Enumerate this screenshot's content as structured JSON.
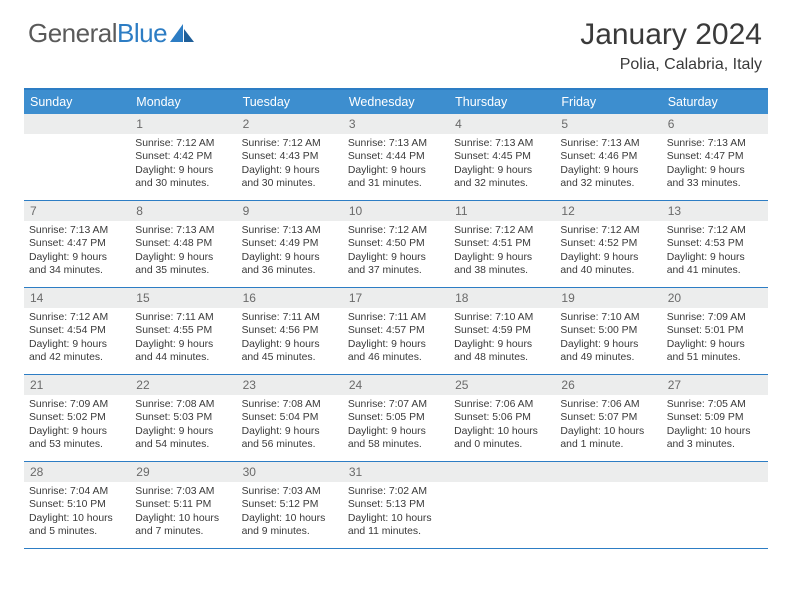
{
  "logo": {
    "text_gray": "General",
    "text_blue": "Blue"
  },
  "title": "January 2024",
  "location": "Polia, Calabria, Italy",
  "colors": {
    "header_bg": "#3d8ecf",
    "border": "#2d7dc4",
    "daynum_bg": "#eceded",
    "text": "#3a3a3a"
  },
  "day_names": [
    "Sunday",
    "Monday",
    "Tuesday",
    "Wednesday",
    "Thursday",
    "Friday",
    "Saturday"
  ],
  "weeks": [
    [
      null,
      {
        "n": "1",
        "sr": "Sunrise: 7:12 AM",
        "ss": "Sunset: 4:42 PM",
        "d1": "Daylight: 9 hours",
        "d2": "and 30 minutes."
      },
      {
        "n": "2",
        "sr": "Sunrise: 7:12 AM",
        "ss": "Sunset: 4:43 PM",
        "d1": "Daylight: 9 hours",
        "d2": "and 30 minutes."
      },
      {
        "n": "3",
        "sr": "Sunrise: 7:13 AM",
        "ss": "Sunset: 4:44 PM",
        "d1": "Daylight: 9 hours",
        "d2": "and 31 minutes."
      },
      {
        "n": "4",
        "sr": "Sunrise: 7:13 AM",
        "ss": "Sunset: 4:45 PM",
        "d1": "Daylight: 9 hours",
        "d2": "and 32 minutes."
      },
      {
        "n": "5",
        "sr": "Sunrise: 7:13 AM",
        "ss": "Sunset: 4:46 PM",
        "d1": "Daylight: 9 hours",
        "d2": "and 32 minutes."
      },
      {
        "n": "6",
        "sr": "Sunrise: 7:13 AM",
        "ss": "Sunset: 4:47 PM",
        "d1": "Daylight: 9 hours",
        "d2": "and 33 minutes."
      }
    ],
    [
      {
        "n": "7",
        "sr": "Sunrise: 7:13 AM",
        "ss": "Sunset: 4:47 PM",
        "d1": "Daylight: 9 hours",
        "d2": "and 34 minutes."
      },
      {
        "n": "8",
        "sr": "Sunrise: 7:13 AM",
        "ss": "Sunset: 4:48 PM",
        "d1": "Daylight: 9 hours",
        "d2": "and 35 minutes."
      },
      {
        "n": "9",
        "sr": "Sunrise: 7:13 AM",
        "ss": "Sunset: 4:49 PM",
        "d1": "Daylight: 9 hours",
        "d2": "and 36 minutes."
      },
      {
        "n": "10",
        "sr": "Sunrise: 7:12 AM",
        "ss": "Sunset: 4:50 PM",
        "d1": "Daylight: 9 hours",
        "d2": "and 37 minutes."
      },
      {
        "n": "11",
        "sr": "Sunrise: 7:12 AM",
        "ss": "Sunset: 4:51 PM",
        "d1": "Daylight: 9 hours",
        "d2": "and 38 minutes."
      },
      {
        "n": "12",
        "sr": "Sunrise: 7:12 AM",
        "ss": "Sunset: 4:52 PM",
        "d1": "Daylight: 9 hours",
        "d2": "and 40 minutes."
      },
      {
        "n": "13",
        "sr": "Sunrise: 7:12 AM",
        "ss": "Sunset: 4:53 PM",
        "d1": "Daylight: 9 hours",
        "d2": "and 41 minutes."
      }
    ],
    [
      {
        "n": "14",
        "sr": "Sunrise: 7:12 AM",
        "ss": "Sunset: 4:54 PM",
        "d1": "Daylight: 9 hours",
        "d2": "and 42 minutes."
      },
      {
        "n": "15",
        "sr": "Sunrise: 7:11 AM",
        "ss": "Sunset: 4:55 PM",
        "d1": "Daylight: 9 hours",
        "d2": "and 44 minutes."
      },
      {
        "n": "16",
        "sr": "Sunrise: 7:11 AM",
        "ss": "Sunset: 4:56 PM",
        "d1": "Daylight: 9 hours",
        "d2": "and 45 minutes."
      },
      {
        "n": "17",
        "sr": "Sunrise: 7:11 AM",
        "ss": "Sunset: 4:57 PM",
        "d1": "Daylight: 9 hours",
        "d2": "and 46 minutes."
      },
      {
        "n": "18",
        "sr": "Sunrise: 7:10 AM",
        "ss": "Sunset: 4:59 PM",
        "d1": "Daylight: 9 hours",
        "d2": "and 48 minutes."
      },
      {
        "n": "19",
        "sr": "Sunrise: 7:10 AM",
        "ss": "Sunset: 5:00 PM",
        "d1": "Daylight: 9 hours",
        "d2": "and 49 minutes."
      },
      {
        "n": "20",
        "sr": "Sunrise: 7:09 AM",
        "ss": "Sunset: 5:01 PM",
        "d1": "Daylight: 9 hours",
        "d2": "and 51 minutes."
      }
    ],
    [
      {
        "n": "21",
        "sr": "Sunrise: 7:09 AM",
        "ss": "Sunset: 5:02 PM",
        "d1": "Daylight: 9 hours",
        "d2": "and 53 minutes."
      },
      {
        "n": "22",
        "sr": "Sunrise: 7:08 AM",
        "ss": "Sunset: 5:03 PM",
        "d1": "Daylight: 9 hours",
        "d2": "and 54 minutes."
      },
      {
        "n": "23",
        "sr": "Sunrise: 7:08 AM",
        "ss": "Sunset: 5:04 PM",
        "d1": "Daylight: 9 hours",
        "d2": "and 56 minutes."
      },
      {
        "n": "24",
        "sr": "Sunrise: 7:07 AM",
        "ss": "Sunset: 5:05 PM",
        "d1": "Daylight: 9 hours",
        "d2": "and 58 minutes."
      },
      {
        "n": "25",
        "sr": "Sunrise: 7:06 AM",
        "ss": "Sunset: 5:06 PM",
        "d1": "Daylight: 10 hours",
        "d2": "and 0 minutes."
      },
      {
        "n": "26",
        "sr": "Sunrise: 7:06 AM",
        "ss": "Sunset: 5:07 PM",
        "d1": "Daylight: 10 hours",
        "d2": "and 1 minute."
      },
      {
        "n": "27",
        "sr": "Sunrise: 7:05 AM",
        "ss": "Sunset: 5:09 PM",
        "d1": "Daylight: 10 hours",
        "d2": "and 3 minutes."
      }
    ],
    [
      {
        "n": "28",
        "sr": "Sunrise: 7:04 AM",
        "ss": "Sunset: 5:10 PM",
        "d1": "Daylight: 10 hours",
        "d2": "and 5 minutes."
      },
      {
        "n": "29",
        "sr": "Sunrise: 7:03 AM",
        "ss": "Sunset: 5:11 PM",
        "d1": "Daylight: 10 hours",
        "d2": "and 7 minutes."
      },
      {
        "n": "30",
        "sr": "Sunrise: 7:03 AM",
        "ss": "Sunset: 5:12 PM",
        "d1": "Daylight: 10 hours",
        "d2": "and 9 minutes."
      },
      {
        "n": "31",
        "sr": "Sunrise: 7:02 AM",
        "ss": "Sunset: 5:13 PM",
        "d1": "Daylight: 10 hours",
        "d2": "and 11 minutes."
      },
      null,
      null,
      null
    ]
  ]
}
